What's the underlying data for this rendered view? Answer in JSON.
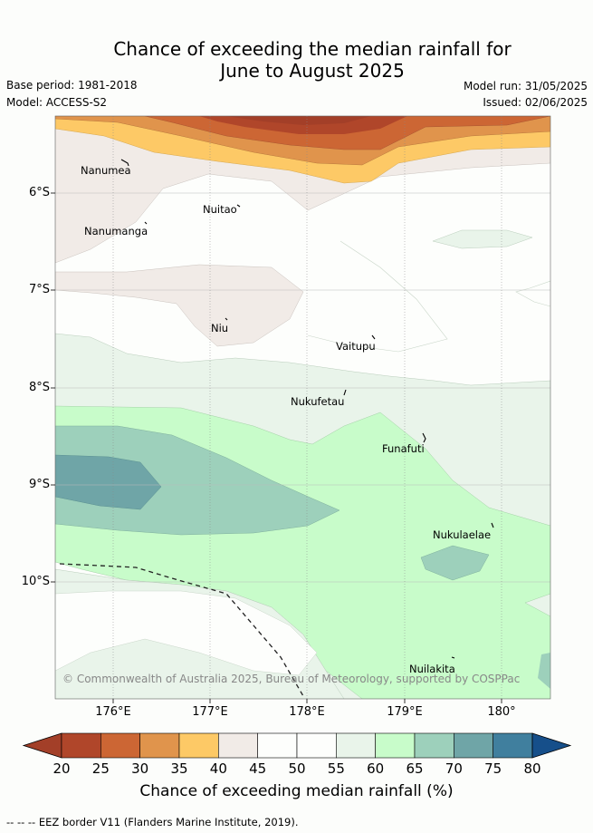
{
  "header": {
    "title_line1": "Chance of exceeding the median rainfall for",
    "title_line2": "June to August 2025",
    "base_period": "Base period: 1981-2018",
    "model": "Model: ACCESS-S2",
    "model_run": "Model run: 31/05/2025",
    "issued": "Issued: 02/06/2025"
  },
  "axes": {
    "lat_labels": [
      "6°S",
      "7°S",
      "8°S",
      "9°S",
      "10°S"
    ],
    "lon_labels": [
      "176°E",
      "177°E",
      "178°E",
      "179°E",
      "180°"
    ]
  },
  "places": [
    "Nanumea",
    "Nuitao",
    "Nanumanga",
    "Niu",
    "Vaitupu",
    "Nukufetau",
    "Funafuti",
    "Nukulaelae",
    "Nuilakita"
  ],
  "copyright": "© Commonwealth of Australia 2025, Bureau of Meteorology, supported by COSPPac",
  "colorbar": {
    "ticks": [
      "20",
      "25",
      "30",
      "35",
      "40",
      "45",
      "50",
      "55",
      "60",
      "65",
      "70",
      "75",
      "80"
    ],
    "colors": [
      "#b0462a",
      "#cc6634",
      "#e0944c",
      "#fdc966",
      "#f1ebe7",
      "#fdfefc",
      "#fdfefc",
      "#e9f4ea",
      "#c8fcca",
      "#9dd0bb",
      "#6fa5a7",
      "#407f9e"
    ],
    "under_color": "#a33f28",
    "over_color": "#164f8a",
    "label": "Chance of exceeding median rainfall (%)"
  },
  "footer": "--  --  -- EEZ border V11 (Flanders Marine Institute, 2019)."
}
